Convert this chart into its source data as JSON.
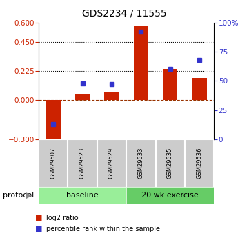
{
  "title": "GDS2234 / 11555",
  "samples": [
    "GSM29507",
    "GSM29523",
    "GSM29529",
    "GSM29533",
    "GSM29535",
    "GSM29536"
  ],
  "log2_ratio": [
    -0.33,
    0.05,
    0.06,
    0.575,
    0.24,
    0.175
  ],
  "percentile_rank": [
    13,
    48,
    47,
    92,
    60,
    68
  ],
  "groups": [
    {
      "label": "baseline",
      "n": 3,
      "color": "#99ee99"
    },
    {
      "label": "20 wk exercise",
      "n": 3,
      "color": "#66cc66"
    }
  ],
  "bar_color": "#cc2200",
  "dot_color": "#3333cc",
  "left_ylim": [
    -0.3,
    0.6
  ],
  "right_ylim": [
    0,
    100
  ],
  "left_yticks": [
    -0.3,
    0,
    0.225,
    0.45,
    0.6
  ],
  "right_yticks": [
    0,
    25,
    50,
    75,
    100
  ],
  "right_yticklabels": [
    "0",
    "25",
    "50",
    "75",
    "100%"
  ],
  "hlines": [
    0.45,
    0.225
  ],
  "background_color": "#ffffff",
  "bar_width": 0.5,
  "protocol_label": "protocol",
  "legend_items": [
    {
      "color": "#cc2200",
      "label": "log2 ratio"
    },
    {
      "color": "#3333cc",
      "label": "percentile rank within the sample"
    }
  ]
}
